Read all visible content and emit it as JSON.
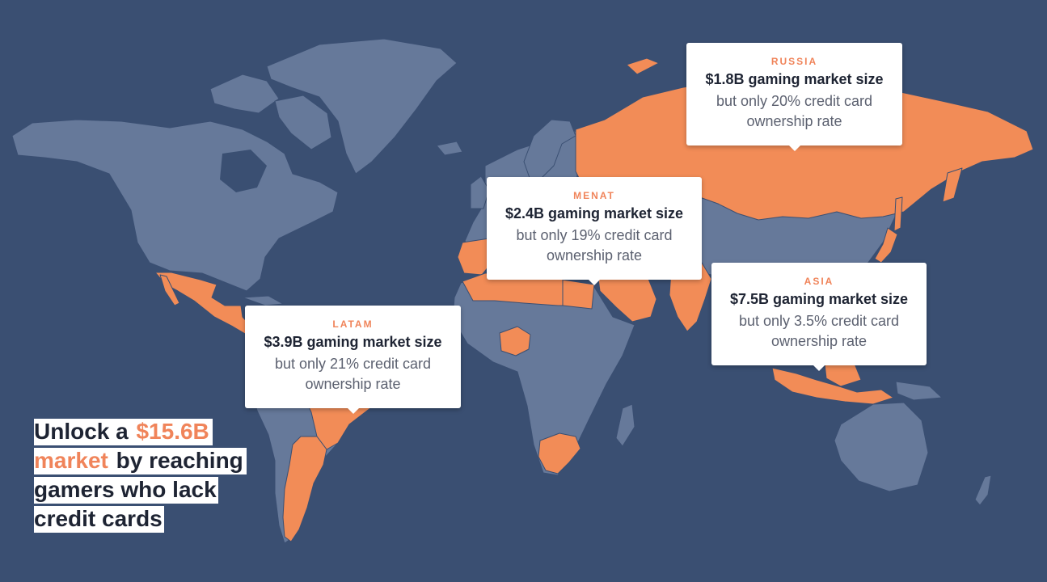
{
  "colors": {
    "ocean": "#3a4f72",
    "land": "#66799a",
    "highlight": "#f28c57",
    "card_background": "#ffffff",
    "region_label": "#f0845a",
    "text_dark": "#1e2433",
    "text_muted": "#5c6170"
  },
  "callouts": {
    "russia": {
      "region": "RUSSIA",
      "market": "$1.8B gaming market size",
      "line1": "but only 20% credit card",
      "line2": "ownership rate"
    },
    "menat": {
      "region": "MENAT",
      "market": "$2.4B gaming market size",
      "line1": "but only 19% credit card",
      "line2": "ownership rate"
    },
    "asia": {
      "region": "ASIA",
      "market": "$7.5B gaming market size",
      "line1": "but only 3.5% credit card",
      "line2": "ownership rate"
    },
    "latam": {
      "region": "LATAM",
      "market": "$3.9B gaming market size",
      "line1": "but only 21% credit card",
      "line2": "ownership rate"
    }
  },
  "headline": {
    "line1_prefix": "Unlock a ",
    "line1_accent": "$15.6B",
    "line2_accent": "market",
    "line2_suffix": " by reaching",
    "line3": "gamers who lack",
    "line4": "credit cards"
  },
  "map": {
    "highlighted_regions": [
      "Russia",
      "MENAT",
      "Asia",
      "LATAM",
      "Nigeria",
      "South Africa"
    ]
  }
}
